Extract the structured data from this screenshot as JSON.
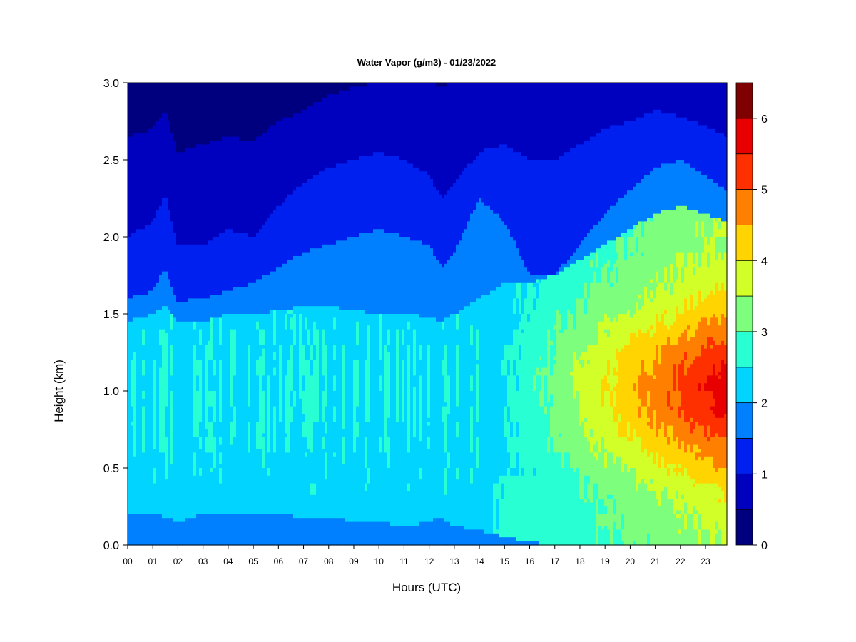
{
  "chart_data": {
    "type": "heatmap",
    "title": "Water Vapor (g/m3) - 01/23/2022",
    "xlabel": "Hours (UTC)",
    "ylabel": "Height (km)",
    "x_ticks": [
      "00",
      "01",
      "02",
      "03",
      "04",
      "05",
      "06",
      "07",
      "08",
      "09",
      "10",
      "11",
      "12",
      "13",
      "14",
      "15",
      "16",
      "17",
      "18",
      "19",
      "20",
      "21",
      "22",
      "23"
    ],
    "xlim": [
      0,
      23.85
    ],
    "y_ticks": [
      "0.0",
      "0.5",
      "1.0",
      "1.5",
      "2.0",
      "2.5",
      "3.0"
    ],
    "ylim": [
      0,
      3.0
    ],
    "colorbar": {
      "levels": [
        0,
        0.5,
        1,
        1.5,
        2,
        2.5,
        3,
        3.5,
        4,
        4.5,
        5,
        5.5,
        6,
        6.5
      ],
      "colors": [
        "#00007f",
        "#0000bf",
        "#0020ef",
        "#0080ff",
        "#00d4ff",
        "#28ffd2",
        "#7dff7d",
        "#d2ff28",
        "#ffd400",
        "#ff8000",
        "#ff3000",
        "#e80000",
        "#7f0000"
      ],
      "tick_labels": [
        "0",
        "1",
        "2",
        "3",
        "4",
        "5",
        "6"
      ],
      "tick_values": [
        0,
        1,
        2,
        3,
        4,
        5,
        6
      ]
    },
    "description_series": {
      "hours": [
        0,
        1,
        1.5,
        2,
        3,
        4,
        5,
        6,
        7,
        8,
        9,
        10,
        11,
        12,
        12.5,
        13,
        14,
        15,
        16,
        17,
        18,
        19,
        20,
        21,
        22,
        23,
        23.85
      ],
      "h_contour_0_5": [
        2.65,
        2.7,
        2.82,
        2.55,
        2.6,
        2.65,
        2.62,
        2.75,
        2.82,
        2.92,
        2.97,
        3.0,
        3.0,
        3.0,
        2.98,
        3.0,
        3.0,
        3.0,
        3.0,
        3.0,
        3.0,
        3.0,
        3.0,
        3.0,
        3.0,
        3.0,
        3.0
      ],
      "h_contour_1_0": [
        2.0,
        2.1,
        2.28,
        1.95,
        1.95,
        2.05,
        2.0,
        2.2,
        2.35,
        2.45,
        2.5,
        2.55,
        2.5,
        2.4,
        2.25,
        2.35,
        2.55,
        2.6,
        2.5,
        2.5,
        2.6,
        2.7,
        2.75,
        2.82,
        2.78,
        2.72,
        2.65
      ],
      "h_contour_1_5": [
        1.6,
        1.65,
        1.8,
        1.58,
        1.6,
        1.65,
        1.7,
        1.8,
        1.9,
        1.95,
        2.0,
        2.05,
        2.0,
        1.95,
        1.8,
        1.9,
        2.25,
        2.1,
        1.75,
        1.75,
        1.95,
        2.15,
        2.3,
        2.45,
        2.5,
        2.4,
        2.3
      ],
      "h_contour_2_0_top": [
        1.45,
        1.5,
        1.55,
        1.45,
        1.45,
        1.5,
        1.5,
        1.52,
        1.55,
        1.55,
        1.52,
        1.5,
        1.5,
        1.48,
        1.45,
        1.5,
        1.6,
        1.7,
        1.7,
        1.75,
        1.85,
        1.95,
        2.05,
        2.15,
        2.2,
        2.15,
        2.1
      ],
      "h_contour_2_0_bottom": [
        0.2,
        0.2,
        0.18,
        0.15,
        0.2,
        0.2,
        0.2,
        0.2,
        0.18,
        0.18,
        0.15,
        0.15,
        0.12,
        0.15,
        0.18,
        0.12,
        0.1,
        0.05,
        0.02,
        0.0,
        0.0,
        0.0,
        0.0,
        0.0,
        0.0,
        0.0,
        0.0
      ]
    }
  }
}
